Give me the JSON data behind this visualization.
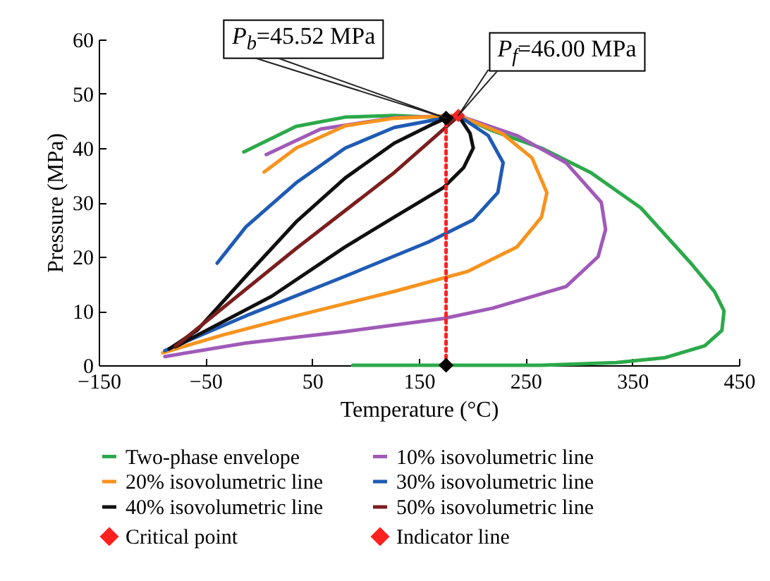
{
  "chart_data": {
    "type": "line",
    "xlabel": "Temperature (°C)",
    "ylabel": "Pressure (MPa)",
    "xlim": [
      -150,
      450
    ],
    "xticks": [
      -150,
      -50,
      50,
      150,
      250,
      350,
      450
    ],
    "ylim": [
      0,
      60
    ],
    "yticks": [
      0,
      10,
      20,
      30,
      40,
      50,
      60
    ],
    "grid": false,
    "legend": "bottom",
    "annotations": [
      {
        "text": "P$_{b}$=45.52 MPa",
        "x": 175.5,
        "y": 45.52
      },
      {
        "text": "P$_{f}$=46.00 MPa",
        "x": 187,
        "y": 46
      }
    ],
    "series": [
      {
        "name": "Two-phase envelope",
        "color": "#2ca94a",
        "x": [
          -14,
          35,
          81,
          127,
          173,
          187,
          219,
          265,
          311,
          358,
          404,
          427,
          436,
          434,
          418,
          381,
          335,
          265,
          88
        ],
        "values": [
          39.3,
          44,
          45.7,
          46,
          45.6,
          46,
          43.2,
          40,
          35.5,
          29,
          19,
          13.6,
          10,
          6.4,
          3.6,
          1.4,
          0.5,
          0,
          0
        ]
      },
      {
        "name": "10% isovolumetric line",
        "color": "#a05ab8",
        "x": [
          7,
          58,
          127,
          187,
          242,
          288,
          321,
          325,
          318,
          288,
          219,
          173,
          81,
          -12,
          -88
        ],
        "values": [
          38.8,
          43.5,
          45.6,
          46,
          42.3,
          37.3,
          30,
          25,
          20,
          14.5,
          10.5,
          8.6,
          6.2,
          4.1,
          1.6
        ]
      },
      {
        "name": "20% isovolumetric line",
        "color": "#f7931e",
        "x": [
          5,
          35,
          81,
          127,
          187,
          228,
          256,
          270,
          265,
          242,
          196,
          127,
          35,
          -35,
          -90
        ],
        "values": [
          35.6,
          40,
          44.1,
          45.5,
          46,
          42.7,
          38.2,
          31.8,
          27.3,
          21.8,
          17.3,
          13.6,
          9.1,
          5.5,
          2.3
        ]
      },
      {
        "name": "30% isovolumetric line",
        "color": "#1f5bb5",
        "x": [
          -39,
          -12,
          35,
          81,
          127,
          187,
          215,
          229,
          224,
          201,
          159,
          81,
          -12,
          -88
        ],
        "values": [
          18.8,
          25.5,
          33.6,
          40,
          43.8,
          46,
          42.3,
          37.3,
          31.8,
          26.8,
          22.7,
          16.4,
          9.1,
          2.7
        ]
      },
      {
        "name": "40% isovolumetric line",
        "color": "#101010",
        "x": [
          -84,
          -58,
          -12,
          35,
          81,
          127,
          164,
          175.5,
          187,
          198,
          201,
          192,
          173,
          127,
          81,
          12,
          -58,
          -78
        ],
        "values": [
          3.0,
          6.4,
          16.4,
          26.4,
          34.5,
          40.9,
          44.5,
          45.52,
          46,
          42.7,
          40,
          36.4,
          32.7,
          27.3,
          21.8,
          12.7,
          5.5,
          3.4
        ]
      },
      {
        "name": "50% isovolumetric line",
        "color": "#7b1e1e",
        "x": [
          -78,
          35,
          127,
          185
        ],
        "values": [
          3.5,
          21.5,
          35.5,
          45.5
        ]
      },
      {
        "name": "Critical point",
        "type": "scatter",
        "color": "#ff2020",
        "marker": "diamond",
        "x": [
          187
        ],
        "values": [
          46
        ]
      },
      {
        "name": "Indicator line",
        "color": "#ff2020",
        "marker": "diamond",
        "line_style": "dotted",
        "x": [
          175.5,
          175.5
        ],
        "values": [
          0,
          45.52
        ]
      }
    ]
  }
}
